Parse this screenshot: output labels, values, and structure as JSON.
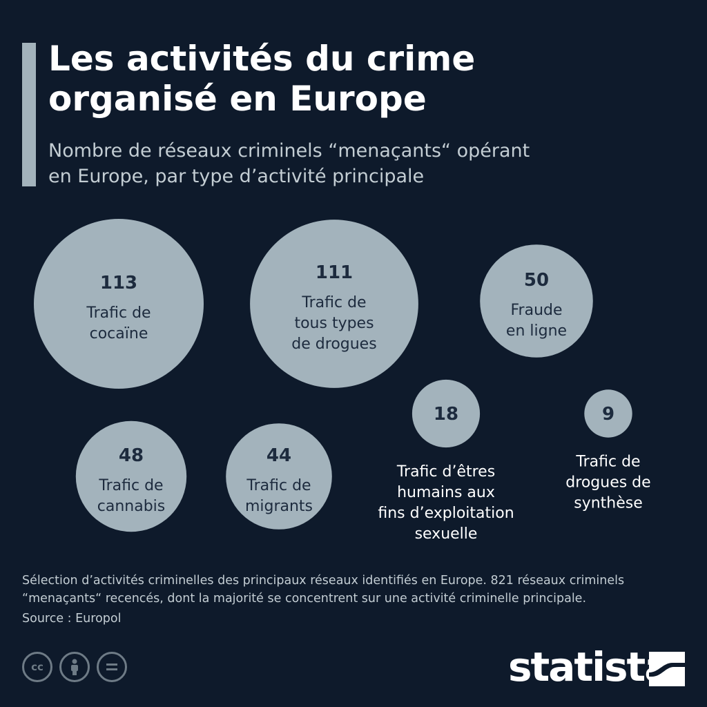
{
  "header": {
    "title_line1": "Les activités du crime",
    "title_line2": "organisé en Europe",
    "subtitle_line1": "Nombre de réseaux criminels “menaçants“ opérant",
    "subtitle_line2": "en Europe, par type d’activité principale"
  },
  "chart_data": {
    "type": "bubble",
    "title": "Les activités du crime organisé en Europe",
    "subtitle": "Nombre de réseaux criminels “menaçants“ opérant en Europe, par type d’activité principale",
    "categories": [
      "Trafic de cocaïne",
      "Trafic de tous types de drogues",
      "Fraude en ligne",
      "Trafic de cannabis",
      "Trafic de migrants",
      "Trafic d’êtres humains aux fins d’exploitation sexuelle",
      "Trafic de drogues de synthèse"
    ],
    "values": [
      113,
      111,
      50,
      48,
      44,
      18,
      9
    ],
    "labels": [
      [
        "Trafic de",
        "cocaïne"
      ],
      [
        "Trafic de",
        "tous types",
        "de drogues"
      ],
      [
        "Fraude",
        "en ligne"
      ],
      [
        "Trafic de",
        "cannabis"
      ],
      [
        "Trafic de",
        "migrants"
      ],
      [
        "Trafic d’êtres",
        "humains aux",
        "fins d’exploitation",
        "sexuelle"
      ],
      [
        "Trafic de",
        "drogues de",
        "synthèse"
      ]
    ],
    "bubble_color": "#a3b3bc",
    "value_text_color": "#1d2b3e"
  },
  "footer": {
    "note_line1": "Sélection d’activités criminelles des principaux réseaux identifiés en Europe. 821 réseaux criminels",
    "note_line2": "“menaçants“ recencés, dont la majorité se concentrent sur une activité criminelle principale.",
    "source": "Source : Europol",
    "brand": "statista",
    "cc_icons": [
      "cc-icon",
      "by-icon",
      "nd-icon"
    ]
  }
}
